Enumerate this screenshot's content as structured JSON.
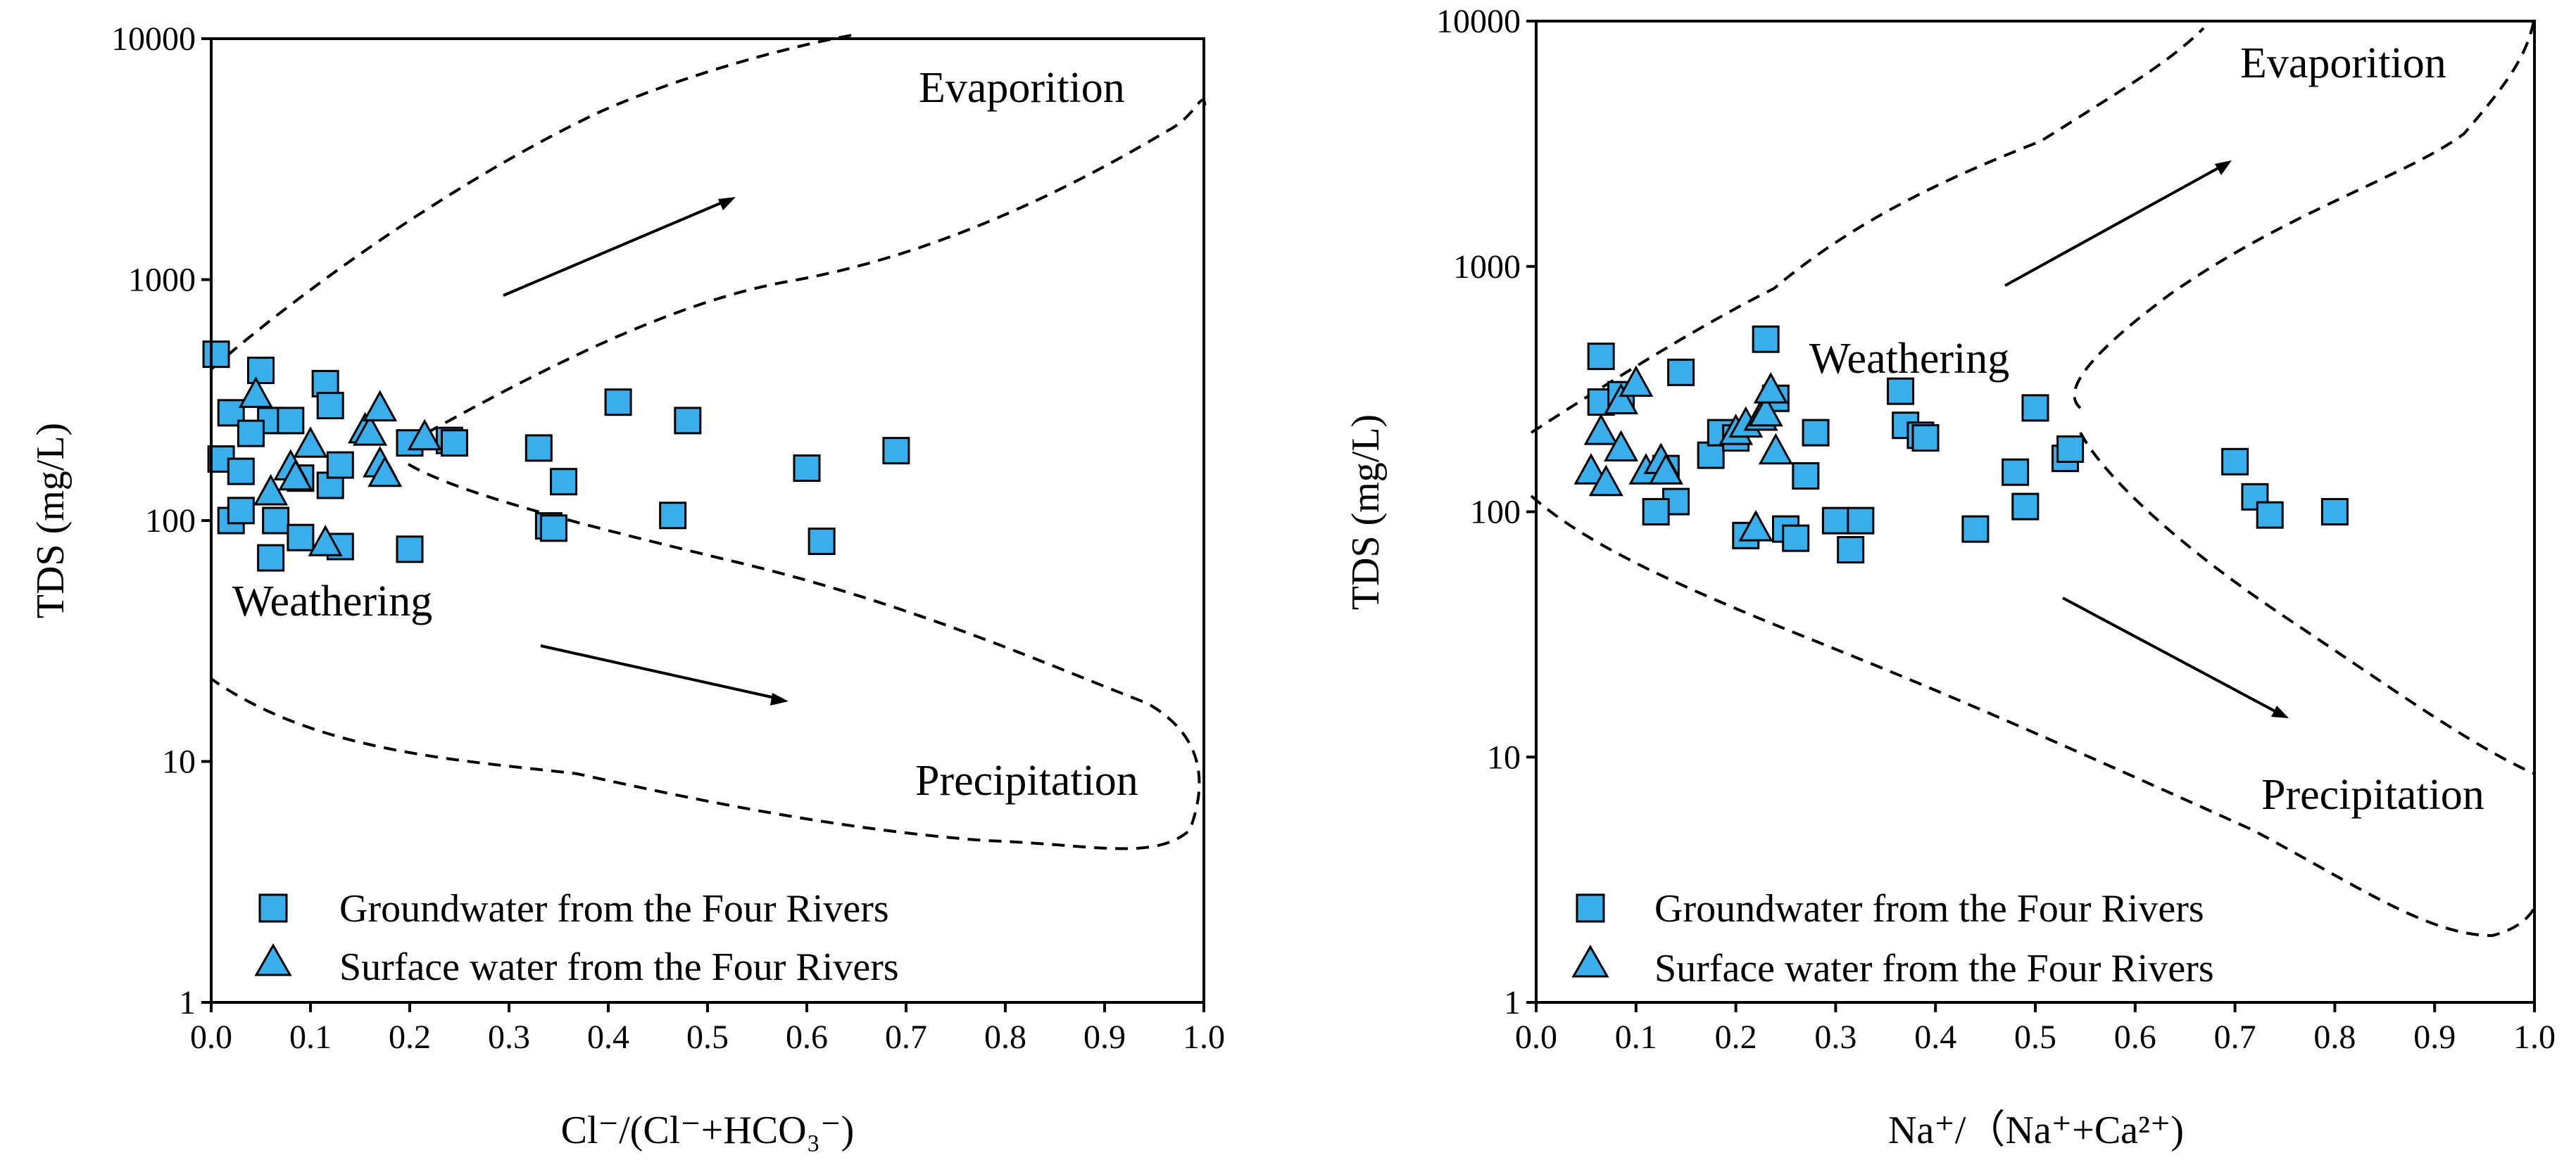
{
  "chart_data": [
    {
      "type": "scatter",
      "id": "left",
      "xlabel": "Cl⁻/(Cl⁻+HCO₃⁻)",
      "ylabel": "TDS (mg/L)",
      "xlim": [
        0,
        1
      ],
      "ylim": [
        1,
        10000
      ],
      "yscale": "log",
      "xticks": [
        "0.0",
        "0.1",
        "0.2",
        "0.3",
        "0.4",
        "0.5",
        "0.6",
        "0.7",
        "0.8",
        "0.9",
        "1.0"
      ],
      "yticks": [
        "1",
        "10",
        "100",
        "1000",
        "10000"
      ],
      "annotations": [
        "Evaporition",
        "Weathering",
        "Precipitation"
      ],
      "legend": {
        "position": "bottom-left",
        "entries": [
          "Groundwater from the Four Rivers",
          "Surface water from the Four Rivers"
        ]
      },
      "series": [
        {
          "name": "Groundwater from the Four Rivers",
          "marker": "square",
          "points": [
            [
              0.005,
              490
            ],
            [
              0.02,
              280
            ],
            [
              0.05,
              420
            ],
            [
              0.01,
              180
            ],
            [
              0.03,
              160
            ],
            [
              0.06,
              260
            ],
            [
              0.08,
              260
            ],
            [
              0.04,
              230
            ],
            [
              0.02,
              100
            ],
            [
              0.03,
              110
            ],
            [
              0.065,
              100
            ],
            [
              0.06,
              70
            ],
            [
              0.09,
              150
            ],
            [
              0.09,
              85
            ],
            [
              0.12,
              140
            ],
            [
              0.115,
              370
            ],
            [
              0.12,
              300
            ],
            [
              0.13,
              170
            ],
            [
              0.13,
              78
            ],
            [
              0.2,
              76
            ],
            [
              0.2,
              210
            ],
            [
              0.24,
              215
            ],
            [
              0.245,
              210
            ],
            [
              0.33,
              200
            ],
            [
              0.34,
              95
            ],
            [
              0.345,
              93
            ],
            [
              0.355,
              145
            ],
            [
              0.41,
              310
            ],
            [
              0.48,
              260
            ],
            [
              0.465,
              105
            ],
            [
              0.6,
              165
            ],
            [
              0.615,
              82
            ],
            [
              0.69,
              195
            ]
          ]
        },
        {
          "name": "Surface water from the Four Rivers",
          "marker": "triangle",
          "points": [
            [
              0.045,
              330
            ],
            [
              0.06,
              130
            ],
            [
              0.08,
              165
            ],
            [
              0.085,
              150
            ],
            [
              0.1,
              205
            ],
            [
              0.115,
              80
            ],
            [
              0.155,
              235
            ],
            [
              0.16,
              230
            ],
            [
              0.17,
              290
            ],
            [
              0.17,
              170
            ],
            [
              0.175,
              155
            ],
            [
              0.215,
              220
            ]
          ]
        }
      ]
    },
    {
      "type": "scatter",
      "id": "right",
      "xlabel": "Na⁺/（Na⁺+Ca²⁺)",
      "ylabel": "TDS (mg/L)",
      "xlim": [
        0,
        1
      ],
      "ylim": [
        1,
        10000
      ],
      "yscale": "log",
      "xticks": [
        "0.0",
        "0.1",
        "0.2",
        "0.3",
        "0.4",
        "0.5",
        "0.6",
        "0.7",
        "0.8",
        "0.9",
        "1.0"
      ],
      "yticks": [
        "1",
        "10",
        "100",
        "1000",
        "10000"
      ],
      "annotations": [
        "Evaporition",
        "Weathering",
        "Precipitation"
      ],
      "legend": {
        "position": "bottom-left",
        "entries": [
          "Groundwater from the Four Rivers",
          "Surface water from the Four Rivers"
        ]
      },
      "series": [
        {
          "name": "Groundwater from the Four Rivers",
          "marker": "square",
          "points": [
            [
              0.065,
              430
            ],
            [
              0.065,
              280
            ],
            [
              0.085,
              300
            ],
            [
              0.145,
              370
            ],
            [
              0.13,
              150
            ],
            [
              0.14,
              110
            ],
            [
              0.12,
              100
            ],
            [
              0.175,
              170
            ],
            [
              0.185,
              210
            ],
            [
              0.2,
              200
            ],
            [
              0.21,
              80
            ],
            [
              0.23,
              505
            ],
            [
              0.24,
              290
            ],
            [
              0.25,
              85
            ],
            [
              0.26,
              78
            ],
            [
              0.27,
              140
            ],
            [
              0.28,
              210
            ],
            [
              0.3,
              92
            ],
            [
              0.315,
              70
            ],
            [
              0.325,
              92
            ],
            [
              0.365,
              310
            ],
            [
              0.37,
              225
            ],
            [
              0.385,
              205
            ],
            [
              0.39,
              200
            ],
            [
              0.44,
              85
            ],
            [
              0.48,
              145
            ],
            [
              0.49,
              105
            ],
            [
              0.5,
              265
            ],
            [
              0.53,
              165
            ],
            [
              0.535,
              180
            ],
            [
              0.7,
              160
            ],
            [
              0.72,
              115
            ],
            [
              0.735,
              97
            ],
            [
              0.8,
              100
            ]
          ]
        },
        {
          "name": "Surface water from the Four Rivers",
          "marker": "triangle",
          "points": [
            [
              0.055,
              145
            ],
            [
              0.065,
              210
            ],
            [
              0.07,
              130
            ],
            [
              0.085,
              180
            ],
            [
              0.085,
              280
            ],
            [
              0.1,
              330
            ],
            [
              0.11,
              145
            ],
            [
              0.125,
              160
            ],
            [
              0.13,
              145
            ],
            [
              0.2,
              210
            ],
            [
              0.21,
              225
            ],
            [
              0.22,
              85
            ],
            [
              0.225,
              240
            ],
            [
              0.23,
              250
            ],
            [
              0.235,
              310
            ],
            [
              0.24,
              175
            ]
          ]
        }
      ]
    }
  ]
}
